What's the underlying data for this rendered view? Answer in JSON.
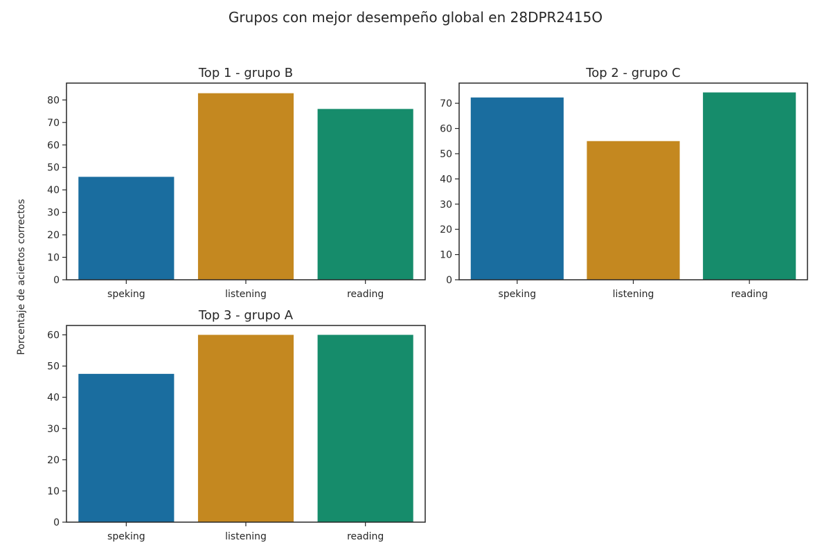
{
  "figure": {
    "suptitle": "Grupos con mejor desempeño global en 28DPR2415O",
    "ylabel": "Porcentaje de aciertos correctos"
  },
  "palette": [
    "#1a6d9f",
    "#c48820",
    "#168c6b"
  ],
  "chart_data": [
    {
      "type": "bar",
      "title": "Top  1 - grupo B",
      "categories": [
        "speking",
        "listening",
        "reading"
      ],
      "values": [
        45.8,
        83.0,
        76.0
      ],
      "ylim": [
        0,
        87.5
      ],
      "yticks": [
        0,
        10,
        20,
        30,
        40,
        50,
        60,
        70,
        80
      ],
      "grid": false
    },
    {
      "type": "bar",
      "title": "Top  2 - grupo C",
      "categories": [
        "speking",
        "listening",
        "reading"
      ],
      "values": [
        72.3,
        55.0,
        74.3
      ],
      "ylim": [
        0,
        78.0
      ],
      "yticks": [
        0,
        10,
        20,
        30,
        40,
        50,
        60,
        70
      ],
      "grid": false
    },
    {
      "type": "bar",
      "title": "Top  3 - grupo A",
      "categories": [
        "speking",
        "listening",
        "reading"
      ],
      "values": [
        47.5,
        60.0,
        60.0
      ],
      "ylim": [
        0,
        63.0
      ],
      "yticks": [
        0,
        10,
        20,
        30,
        40,
        50,
        60
      ],
      "grid": false
    }
  ]
}
